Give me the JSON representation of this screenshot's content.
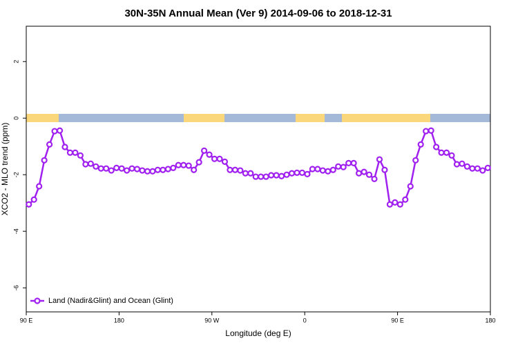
{
  "chart_data": {
    "type": "line",
    "title": "30N-35N Annual Mean (Ver 9)   2014-09-06 to 2018-12-31",
    "x_label": "Longitude (deg E)",
    "y_label": "XCO2 - MLO trend (ppm)",
    "xlim": [
      90,
      540
    ],
    "ylim": [
      -6.85,
      3.25
    ],
    "xticks": [
      {
        "value": 90,
        "label": "90 E"
      },
      180,
      {
        "value": 270,
        "label": "90 W"
      },
      {
        "value": 360,
        "label": "0"
      },
      {
        "value": 450,
        "label": "90 E"
      },
      {
        "value": 540,
        "label": "180"
      }
    ],
    "yticks": [
      -6,
      -4,
      -2,
      0,
      2
    ],
    "legend": "bottom-left",
    "x": [
      92.5,
      97.5,
      102.5,
      107.5,
      112.5,
      117.5,
      122.5,
      127.5,
      132.5,
      137.5,
      142.5,
      147.5,
      152.5,
      157.5,
      162.5,
      167.5,
      172.5,
      177.5,
      182.5,
      187.5,
      192.5,
      197.5,
      202.5,
      207.5,
      212.5,
      217.5,
      222.5,
      227.5,
      232.5,
      237.5,
      242.5,
      247.5,
      252.5,
      257.5,
      262.5,
      267.5,
      272.5,
      277.5,
      282.5,
      287.5,
      292.5,
      297.5,
      302.5,
      307.5,
      312.5,
      317.5,
      322.5,
      327.5,
      332.5,
      337.5,
      342.5,
      347.5,
      352.5,
      357.5,
      362.5,
      367.5,
      372.5,
      377.5,
      382.5,
      387.5,
      392.5,
      397.5,
      402.5,
      407.5,
      412.5,
      417.5,
      422.5,
      427.5,
      432.5,
      437.5,
      442.5,
      447.5,
      452.5,
      457.5,
      462.5,
      467.5,
      472.5,
      477.5,
      482.5,
      487.5,
      492.5,
      497.5,
      502.5,
      507.5,
      512.5,
      517.5,
      522.5,
      527.5,
      532.5,
      537.5
    ],
    "series": [
      {
        "name": "Land (Nadir&Glint) and Ocean (Glint)",
        "color": "#a020f0",
        "values": [
          -3.05,
          -2.88,
          -2.41,
          -1.49,
          -0.93,
          -0.46,
          -0.44,
          -1.02,
          -1.22,
          -1.22,
          -1.32,
          -1.63,
          -1.61,
          -1.71,
          -1.78,
          -1.78,
          -1.85,
          -1.76,
          -1.78,
          -1.85,
          -1.78,
          -1.8,
          -1.85,
          -1.88,
          -1.88,
          -1.83,
          -1.83,
          -1.8,
          -1.76,
          -1.66,
          -1.66,
          -1.68,
          -1.83,
          -1.56,
          -1.15,
          -1.29,
          -1.44,
          -1.44,
          -1.54,
          -1.83,
          -1.83,
          -1.85,
          -1.95,
          -1.95,
          -2.07,
          -2.07,
          -2.07,
          -2.02,
          -2.02,
          -2.05,
          -2.0,
          -1.95,
          -1.93,
          -1.93,
          -1.98,
          -1.8,
          -1.8,
          -1.85,
          -1.88,
          -1.83,
          -1.71,
          -1.73,
          -1.59,
          -1.59,
          -1.95,
          -1.9,
          -2.0,
          -2.15,
          -1.46,
          -1.83,
          -3.05,
          -2.98,
          -3.05,
          -2.88,
          -2.41,
          -1.49,
          -0.93,
          -0.46,
          -0.44,
          -1.02,
          -1.22,
          -1.22,
          -1.32,
          -1.63,
          -1.61,
          -1.71,
          -1.78,
          -1.78,
          -1.85,
          -1.76
        ]
      }
    ]
  }
}
